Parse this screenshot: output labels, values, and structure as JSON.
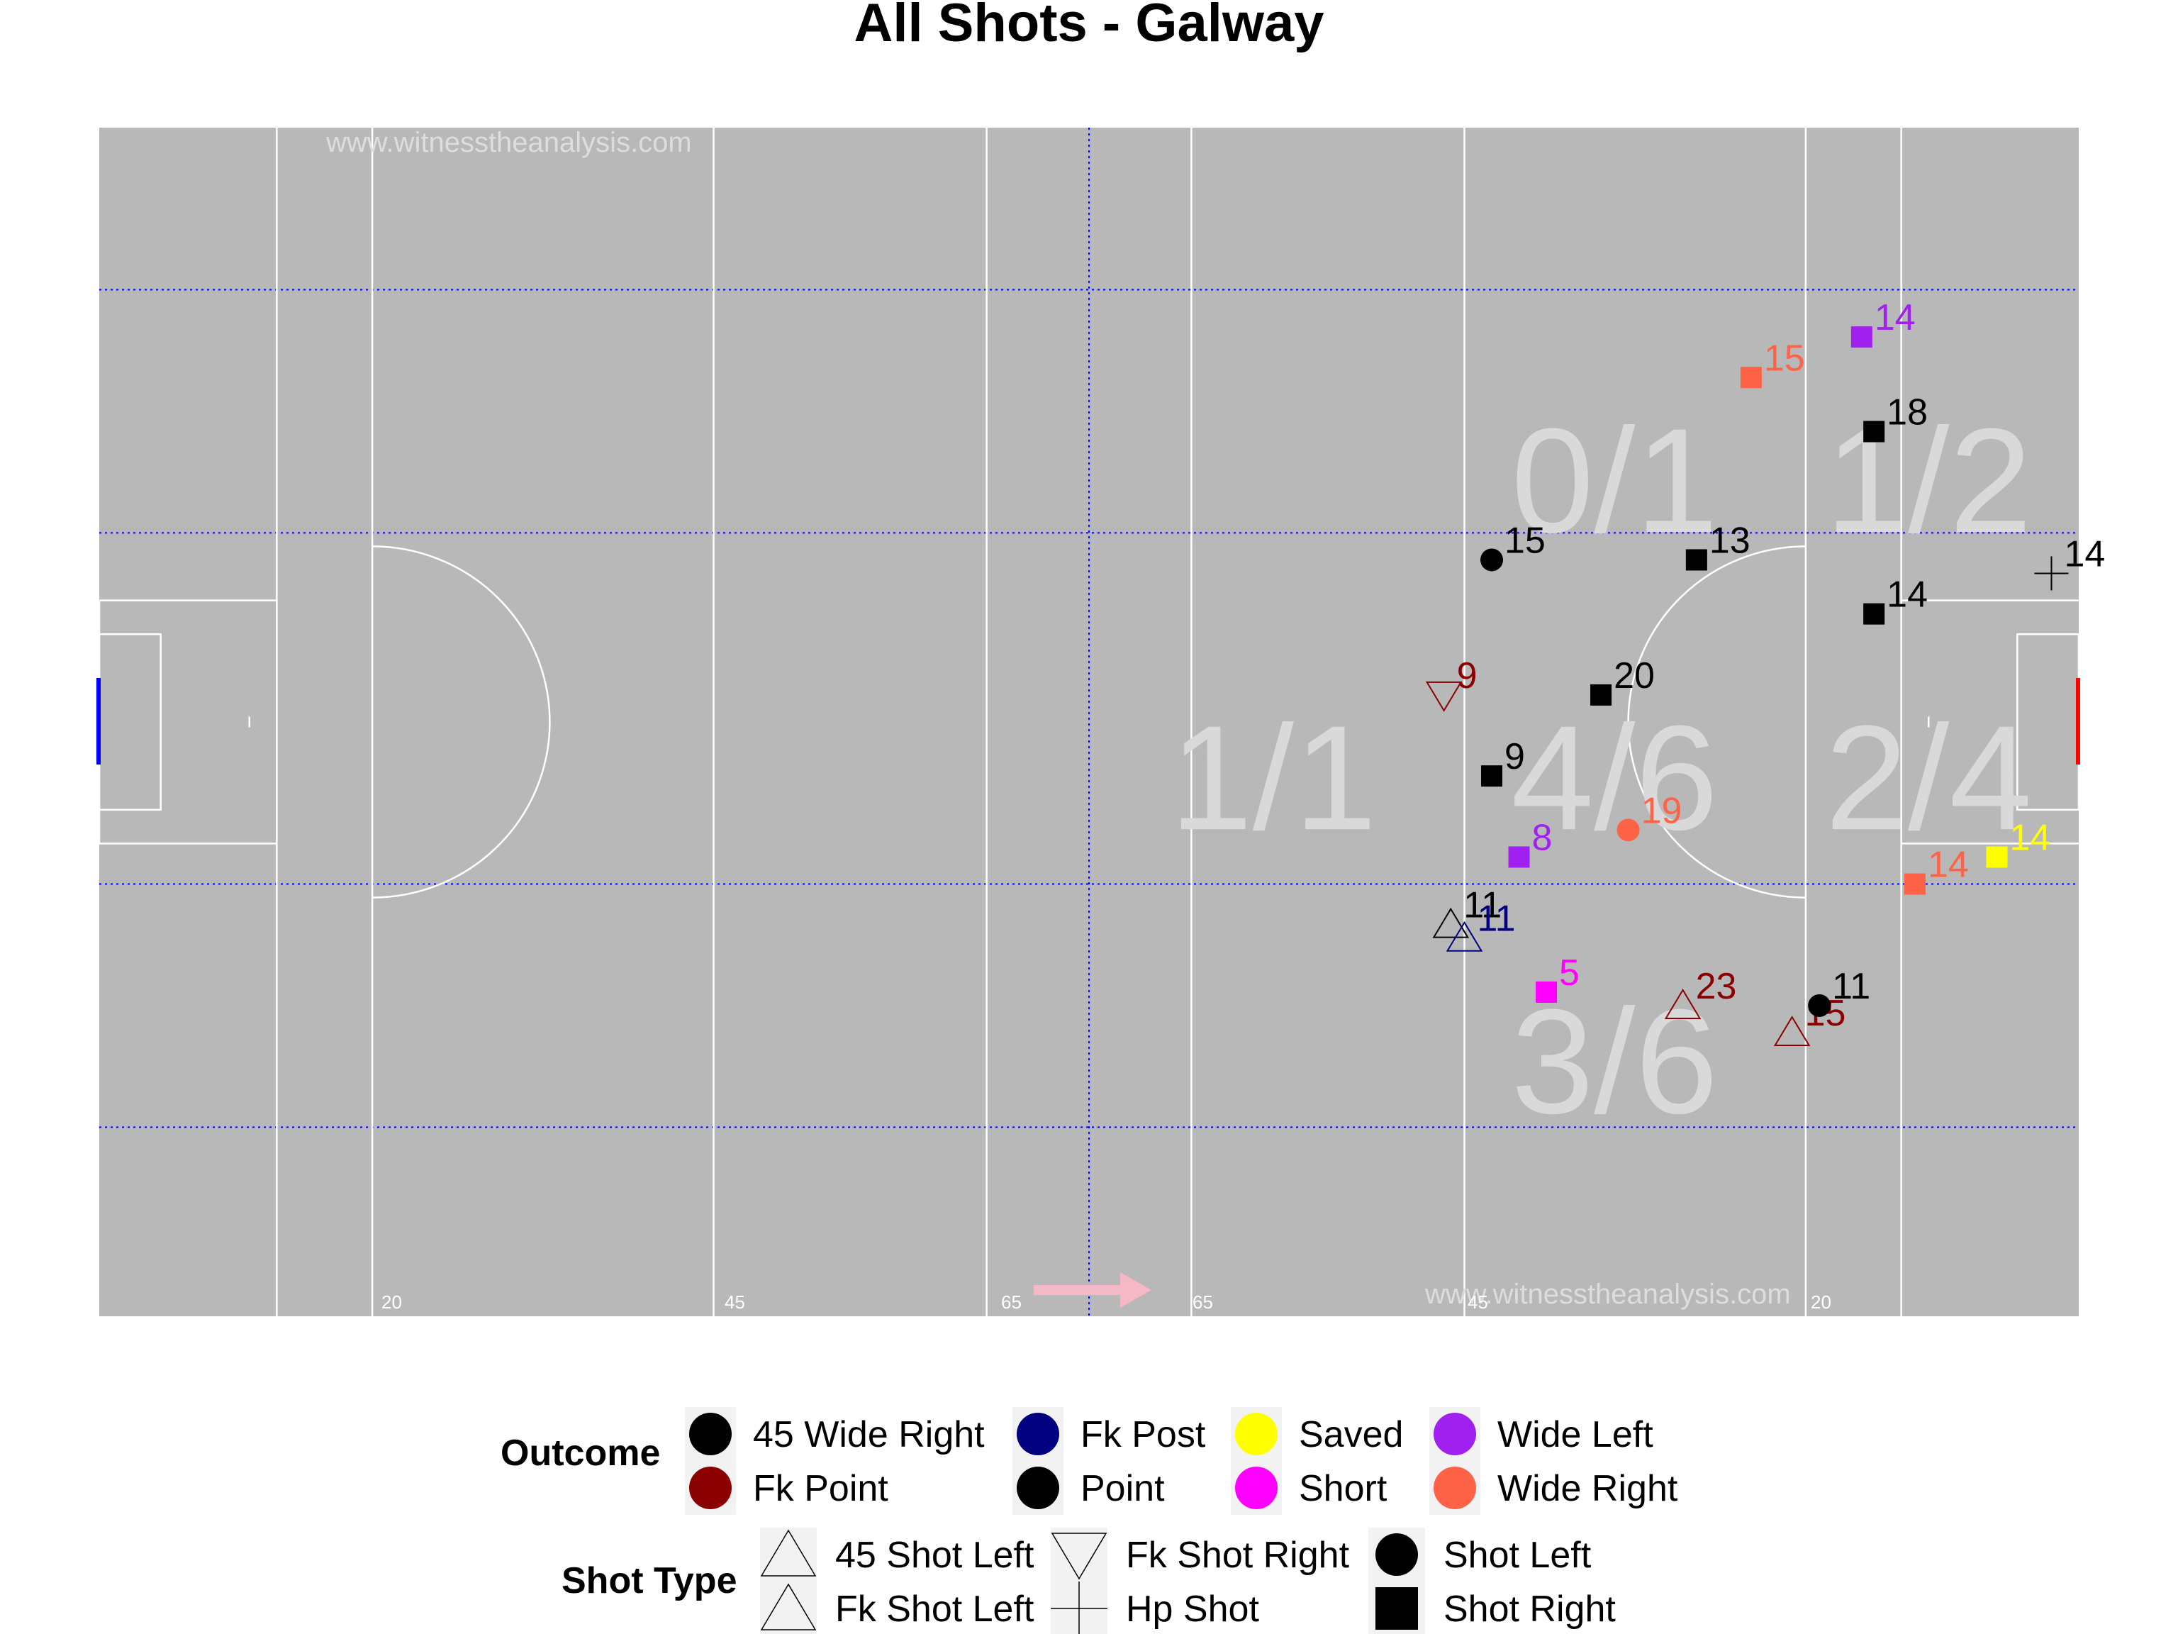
{
  "chart_data": {
    "type": "scatter",
    "title": "All Shots - Galway",
    "watermark": "www.witnesstheanalysis.com",
    "distance_labels": [
      "20",
      "45",
      "65",
      "65",
      "45",
      "20"
    ],
    "xlim": [
      0,
      145
    ],
    "ylim": [
      0,
      88
    ],
    "zones": [
      {
        "label": "0/1",
        "x": 111,
        "y": 62
      },
      {
        "label": "1/2",
        "x": 134,
        "y": 62
      },
      {
        "label": "1/1",
        "x": 86,
        "y": 40
      },
      {
        "label": "4/6",
        "x": 111,
        "y": 40
      },
      {
        "label": "2/4",
        "x": 134,
        "y": 40
      },
      {
        "label": "3/6",
        "x": 111,
        "y": 19
      }
    ],
    "shots": [
      {
        "x": 129.1,
        "y": 72.5,
        "number": "14",
        "outcome": "Wide Left",
        "shot_type": "Shot Right"
      },
      {
        "x": 121.0,
        "y": 69.5,
        "number": "15",
        "outcome": "Wide Right",
        "shot_type": "Shot Right"
      },
      {
        "x": 130.0,
        "y": 65.5,
        "number": "18",
        "outcome": "Point",
        "shot_type": "Shot Right"
      },
      {
        "x": 143.0,
        "y": 55.0,
        "number": "14",
        "outcome": "Point",
        "shot_type": "Hp Shot"
      },
      {
        "x": 102.0,
        "y": 56.0,
        "number": "15",
        "outcome": "Point",
        "shot_type": "Shot Left"
      },
      {
        "x": 117.0,
        "y": 56.0,
        "number": "13",
        "outcome": "Point",
        "shot_type": "Shot Right"
      },
      {
        "x": 130.0,
        "y": 52.0,
        "number": "14",
        "outcome": "Point",
        "shot_type": "Shot Right"
      },
      {
        "x": 98.5,
        "y": 46.0,
        "number": "9",
        "outcome": "Fk Point",
        "shot_type": "Fk Shot Right"
      },
      {
        "x": 110.0,
        "y": 46.0,
        "number": "20",
        "outcome": "Point",
        "shot_type": "Shot Right"
      },
      {
        "x": 102.0,
        "y": 40.0,
        "number": "9",
        "outcome": "Point",
        "shot_type": "Shot Right"
      },
      {
        "x": 112.0,
        "y": 36.0,
        "number": "19",
        "outcome": "Wide Right",
        "shot_type": "Shot Left"
      },
      {
        "x": 104.0,
        "y": 34.0,
        "number": "8",
        "outcome": "Wide Left",
        "shot_type": "Shot Right"
      },
      {
        "x": 139.0,
        "y": 34.0,
        "number": "14",
        "outcome": "Saved",
        "shot_type": "Shot Right"
      },
      {
        "x": 133.0,
        "y": 32.0,
        "number": "14",
        "outcome": "Wide Right",
        "shot_type": "Shot Right"
      },
      {
        "x": 99.0,
        "y": 29.0,
        "number": "11",
        "outcome": "45 Wide Right",
        "shot_type": "45 Shot Left"
      },
      {
        "x": 100.0,
        "y": 28.0,
        "number": "11",
        "outcome": "Fk Post",
        "shot_type": "Fk Shot Left"
      },
      {
        "x": 106.0,
        "y": 24.0,
        "number": "5",
        "outcome": "Short",
        "shot_type": "Shot Right"
      },
      {
        "x": 116.0,
        "y": 23.0,
        "number": "23",
        "outcome": "Fk Point",
        "shot_type": "Fk Shot Left"
      },
      {
        "x": 124.0,
        "y": 21.0,
        "number": "15",
        "outcome": "Fk Point",
        "shot_type": "Fk Shot Left"
      },
      {
        "x": 126.0,
        "y": 23.0,
        "number": "11",
        "outcome": "Point",
        "shot_type": "Shot Left"
      }
    ],
    "legend": {
      "outcome_title": "Outcome",
      "outcomes": [
        {
          "name": "45 Wide Right",
          "color": "#000000"
        },
        {
          "name": "Fk Point",
          "color": "#8b0000"
        },
        {
          "name": "Fk Post",
          "color": "#000080"
        },
        {
          "name": "Point",
          "color": "#000000"
        },
        {
          "name": "Saved",
          "color": "#ffff00"
        },
        {
          "name": "Short",
          "color": "#ff00ff"
        },
        {
          "name": "Wide Left",
          "color": "#a020f0"
        },
        {
          "name": "Wide Right",
          "color": "#ff6347"
        }
      ],
      "shot_type_title": "Shot Type",
      "shot_types": [
        {
          "name": "45 Shot Left",
          "shape": "triangle-up"
        },
        {
          "name": "Fk Shot Left",
          "shape": "triangle-up"
        },
        {
          "name": "Fk Shot Right",
          "shape": "triangle-down"
        },
        {
          "name": "Hp Shot",
          "shape": "plus"
        },
        {
          "name": "Shot Left",
          "shape": "circle"
        },
        {
          "name": "Shot Right",
          "shape": "square"
        }
      ]
    },
    "colors": {
      "pitch": "#b8b8b8",
      "pitch_lines": "#ffffff",
      "grid_dotted": "#0000ff",
      "left_goal": "#0000ff",
      "right_goal": "#ff0000",
      "arrow": "#f4b9c4"
    }
  }
}
